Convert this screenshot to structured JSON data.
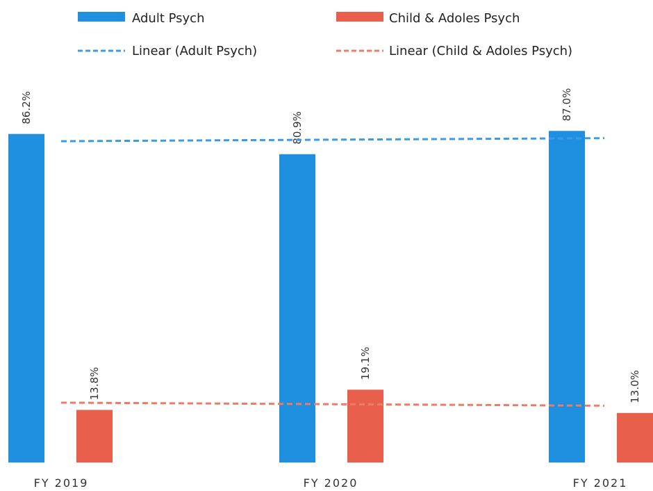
{
  "chart_data": {
    "type": "bar",
    "categories": [
      "FY 2019",
      "FY 2020",
      "FY 2021"
    ],
    "series": [
      {
        "name": "Adult Psych",
        "values": [
          86.2,
          80.9,
          87.0
        ],
        "labels": [
          "86.2%",
          "80.9%",
          "87.0%"
        ],
        "color": "#1f8fe0"
      },
      {
        "name": "Child & Adoles Psych",
        "values": [
          13.8,
          19.1,
          13.0
        ],
        "labels": [
          "13.8%",
          "19.1%",
          "13.0%"
        ],
        "color": "#e8604c"
      }
    ],
    "trendlines": [
      {
        "name": "Linear (Adult Psych)",
        "series": "Adult Psych",
        "style": "dashed",
        "color": "#3a9be6"
      },
      {
        "name": "Linear (Child & Adoles Psych)",
        "series": "Child & Adoles Psych",
        "style": "dashed",
        "color": "#ef7a66"
      }
    ],
    "ylim": [
      0,
      90
    ],
    "grid": false,
    "legend": "top"
  }
}
